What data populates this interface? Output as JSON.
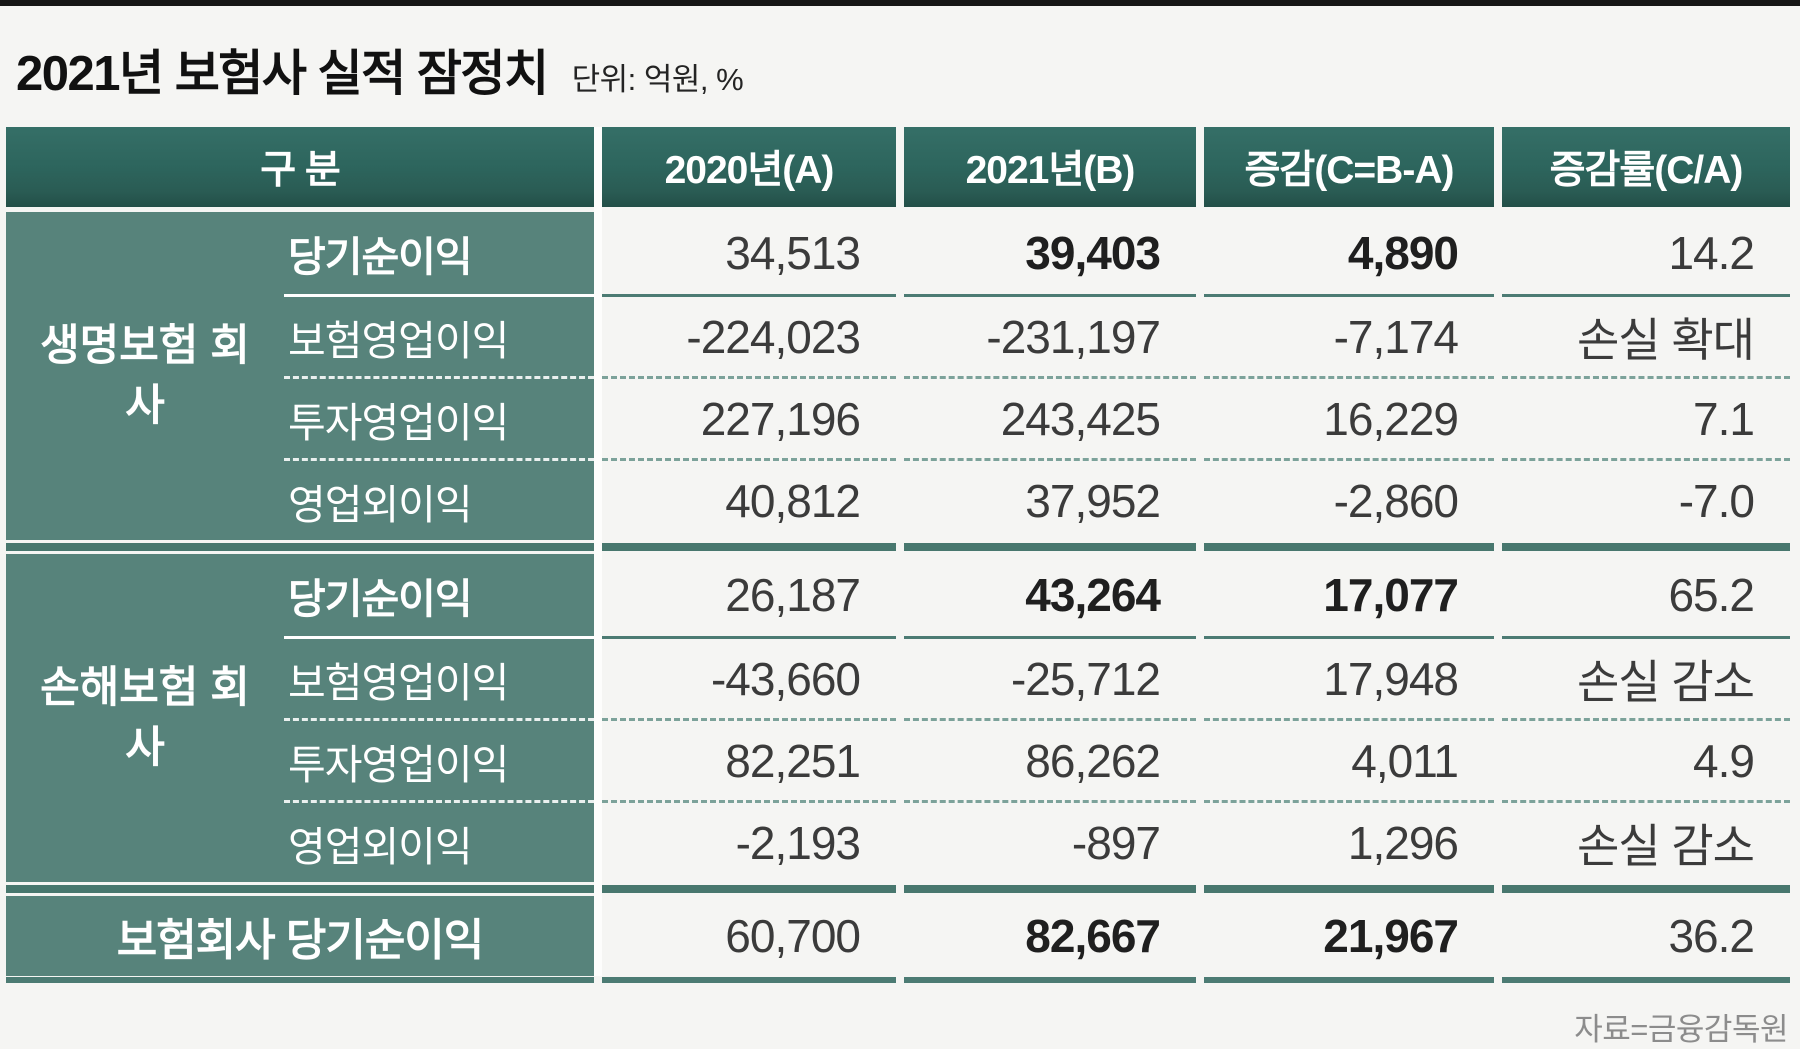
{
  "title": {
    "text": "2021년 보험사 실적 잠정치",
    "unit": "단위: 억원, %"
  },
  "source": "자료=금융감독원",
  "colors": {
    "header_teal": "#2d655d",
    "group_teal": "#57837b",
    "line_teal": "#4c7b73",
    "thick_line_teal": "#48776e",
    "dash_teal": "#7ca29a",
    "page_bg": "#f5f5f3",
    "top_rule": "#161616",
    "number_text": "#3b3b3b",
    "source_gray": "#8c8c8c"
  },
  "table": {
    "headers": [
      "구 분",
      "2020년(A)",
      "2021년(B)",
      "증감(C=B-A)",
      "증감률(C/A)"
    ],
    "sections": [
      {
        "group": "생명보험 회사",
        "rows": [
          {
            "label": "당기순이익",
            "a": "34,513",
            "b": "39,403",
            "c": "4,890",
            "r": "14.2"
          },
          {
            "label": "보험영업이익",
            "a": "-224,023",
            "b": "-231,197",
            "c": "-7,174",
            "r": "손실 확대"
          },
          {
            "label": "투자영업이익",
            "a": "227,196",
            "b": "243,425",
            "c": "16,229",
            "r": "7.1"
          },
          {
            "label": "영업외이익",
            "a": "40,812",
            "b": "37,952",
            "c": "-2,860",
            "r": "-7.0"
          }
        ]
      },
      {
        "group": "손해보험 회사",
        "rows": [
          {
            "label": "당기순이익",
            "a": "26,187",
            "b": "43,264",
            "c": "17,077",
            "r": "65.2"
          },
          {
            "label": "보험영업이익",
            "a": "-43,660",
            "b": "-25,712",
            "c": "17,948",
            "r": "손실 감소"
          },
          {
            "label": "투자영업이익",
            "a": "82,251",
            "b": "86,262",
            "c": "4,011",
            "r": "4.9"
          },
          {
            "label": "영업외이익",
            "a": "-2,193",
            "b": "-897",
            "c": "1,296",
            "r": "손실 감소"
          }
        ]
      }
    ],
    "total": {
      "label": "보험회사 당기순이익",
      "a": "60,700",
      "b": "82,667",
      "c": "21,967",
      "r": "36.2"
    }
  },
  "chart_data": {
    "type": "table",
    "title": "2021년 보험사 실적 잠정치",
    "unit": "억원, %",
    "source": "자료=금융감독원",
    "columns": [
      "구 분",
      "2020년(A)",
      "2021년(B)",
      "증감(C=B-A)",
      "증감률(C/A)"
    ],
    "rows": [
      [
        "생명보험 회사",
        "당기순이익",
        34513,
        39403,
        4890,
        "14.2"
      ],
      [
        "생명보험 회사",
        "보험영업이익",
        -224023,
        -231197,
        -7174,
        "손실 확대"
      ],
      [
        "생명보험 회사",
        "투자영업이익",
        227196,
        243425,
        16229,
        "7.1"
      ],
      [
        "생명보험 회사",
        "영업외이익",
        40812,
        37952,
        -2860,
        "-7.0"
      ],
      [
        "손해보험 회사",
        "당기순이익",
        26187,
        43264,
        17077,
        "65.2"
      ],
      [
        "손해보험 회사",
        "보험영업이익",
        -43660,
        -25712,
        17948,
        "손실 감소"
      ],
      [
        "손해보험 회사",
        "투자영업이익",
        82251,
        86262,
        4011,
        "4.9"
      ],
      [
        "손해보험 회사",
        "영업외이익",
        -2193,
        -897,
        1296,
        "손실 감소"
      ],
      [
        "보험회사 당기순이익",
        "",
        60700,
        82667,
        21967,
        "36.2"
      ]
    ]
  }
}
